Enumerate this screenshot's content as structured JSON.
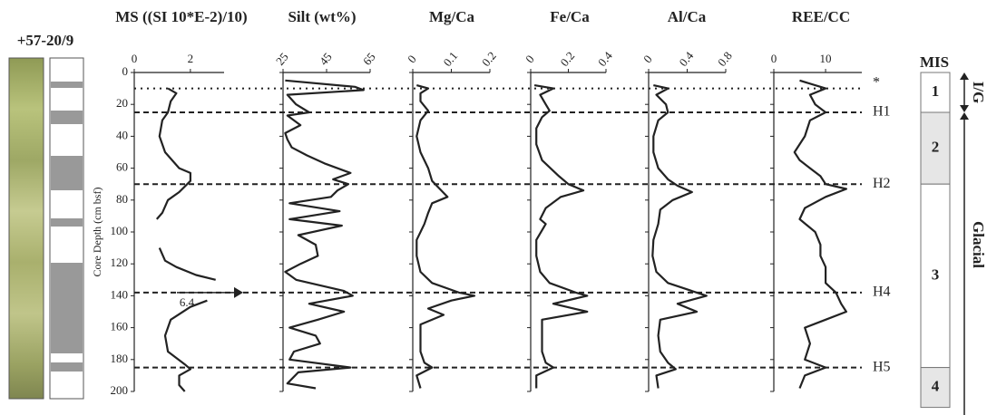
{
  "core_label": "+57-20/9",
  "chart_data": {
    "type": "depth-profile",
    "ylabel": "Core Depth (cm bsf)",
    "ylim": [
      0,
      200
    ],
    "yticks": [
      0,
      20,
      40,
      60,
      80,
      100,
      120,
      140,
      160,
      180,
      200
    ],
    "panels": [
      {
        "title": "MS ((SI 10*E-2)/10)",
        "xlim": [
          0,
          3.2
        ],
        "xticks": [
          0,
          2
        ],
        "depth": [
          10,
          13,
          18,
          25,
          30,
          40,
          50,
          60,
          63,
          68,
          75,
          80,
          88,
          92,
          100,
          110,
          118,
          122,
          127,
          130,
          135,
          143,
          147,
          155,
          165,
          175,
          183,
          186,
          190,
          196,
          200
        ],
        "values": [
          1.2,
          1.5,
          1.3,
          1.2,
          1.0,
          0.9,
          1.1,
          1.6,
          2.0,
          2.0,
          1.6,
          1.2,
          1.0,
          0.8,
          null,
          0.9,
          1.1,
          1.5,
          2.2,
          2.9,
          null,
          2.6,
          2.0,
          1.3,
          1.1,
          1.2,
          1.8,
          2.0,
          1.6,
          1.6,
          1.8
        ],
        "annotation": {
          "text": "6.4",
          "depth": 138
        }
      },
      {
        "title": "Silt (wt%)",
        "xlim": [
          25,
          65
        ],
        "xticks": [
          25,
          45,
          65
        ],
        "depth": [
          5,
          9,
          11,
          14,
          20,
          25,
          27,
          33,
          38,
          42,
          47,
          52,
          57,
          63,
          67,
          70,
          74,
          78,
          82,
          87,
          92,
          96,
          102,
          108,
          115,
          120,
          125,
          130,
          137,
          140,
          145,
          150,
          155,
          160,
          165,
          170,
          175,
          180,
          185,
          188,
          195,
          198
        ],
        "values": [
          26,
          58,
          62,
          27,
          31,
          37,
          27,
          33,
          26,
          27,
          29,
          36,
          44,
          56,
          48,
          55,
          50,
          47,
          28,
          51,
          28,
          52,
          32,
          40,
          41,
          33,
          26,
          31,
          53,
          57,
          37,
          53,
          41,
          28,
          40,
          42,
          30,
          28,
          56,
          32,
          27,
          40
        ]
      },
      {
        "title": "Mg/Ca",
        "xlim": [
          0,
          0.2
        ],
        "xticks": [
          0,
          0.1,
          0.2
        ],
        "depth": [
          8,
          10,
          13,
          18,
          24,
          30,
          40,
          50,
          60,
          68,
          73,
          78,
          82,
          88,
          95,
          105,
          115,
          125,
          132,
          138,
          140,
          143,
          148,
          152,
          158,
          165,
          175,
          182,
          185,
          190,
          198
        ],
        "values": [
          0.01,
          0.04,
          0.02,
          0.02,
          0.04,
          0.02,
          0.01,
          0.02,
          0.04,
          0.05,
          0.07,
          0.09,
          0.05,
          0.04,
          0.03,
          0.01,
          0.01,
          0.02,
          0.05,
          0.12,
          0.16,
          0.1,
          0.04,
          0.08,
          0.02,
          0.02,
          0.02,
          0.03,
          0.05,
          0.01,
          0.02
        ]
      },
      {
        "title": "Fe/Ca",
        "xlim": [
          0,
          0.4
        ],
        "xticks": [
          0,
          0.2,
          0.4
        ],
        "depth": [
          8,
          10,
          14,
          20,
          24,
          28,
          35,
          45,
          55,
          65,
          70,
          74,
          78,
          85,
          92,
          95,
          105,
          115,
          125,
          132,
          138,
          140,
          145,
          150,
          155,
          162,
          175,
          182,
          185,
          190,
          198
        ],
        "values": [
          0.02,
          0.12,
          0.05,
          0.08,
          0.1,
          0.06,
          0.03,
          0.03,
          0.06,
          0.15,
          0.2,
          0.28,
          0.16,
          0.08,
          0.05,
          0.08,
          0.03,
          0.03,
          0.05,
          0.1,
          0.24,
          0.3,
          0.12,
          0.3,
          0.06,
          0.06,
          0.06,
          0.08,
          0.12,
          0.03,
          0.03
        ]
      },
      {
        "title": "Al/Ca",
        "xlim": [
          0,
          0.8
        ],
        "xticks": [
          0,
          0.4,
          0.8
        ],
        "depth": [
          8,
          10,
          14,
          20,
          25,
          30,
          40,
          50,
          60,
          67,
          71,
          75,
          80,
          86,
          95,
          105,
          115,
          125,
          132,
          138,
          140,
          145,
          150,
          155,
          165,
          175,
          182,
          186,
          190,
          198
        ],
        "values": [
          0.05,
          0.2,
          0.08,
          0.18,
          0.2,
          0.1,
          0.05,
          0.05,
          0.1,
          0.2,
          0.3,
          0.45,
          0.25,
          0.12,
          0.1,
          0.05,
          0.04,
          0.08,
          0.2,
          0.5,
          0.6,
          0.3,
          0.5,
          0.12,
          0.1,
          0.12,
          0.2,
          0.28,
          0.08,
          0.1
        ]
      },
      {
        "title": "REE/CC",
        "xlim": [
          0,
          17
        ],
        "xticks": [
          0,
          10
        ],
        "depth": [
          5,
          10,
          14,
          20,
          25,
          30,
          40,
          50,
          55,
          60,
          65,
          70,
          73,
          78,
          85,
          92,
          100,
          108,
          115,
          122,
          132,
          138,
          145,
          150,
          155,
          160,
          170,
          180,
          185,
          190,
          198
        ],
        "values": [
          5,
          10,
          7,
          8,
          10,
          7,
          6,
          4,
          5,
          7,
          9,
          10,
          14,
          10,
          6,
          5,
          8,
          9,
          9,
          10,
          10,
          12,
          13,
          14,
          10,
          6,
          7,
          6,
          10,
          6,
          5
        ]
      }
    ],
    "horizons": [
      {
        "depth": 10,
        "label": "*",
        "style": "dotted"
      },
      {
        "depth": 25,
        "label": "H1",
        "style": "dashed"
      },
      {
        "depth": 70,
        "label": "H2",
        "style": "dashed"
      },
      {
        "depth": 138,
        "label": "H4",
        "style": "dashed"
      },
      {
        "depth": 185,
        "label": "H5",
        "style": "dashed"
      }
    ],
    "mis": {
      "title": "MIS",
      "interglacial": "I/G",
      "glacial": "Glacial",
      "stages": [
        {
          "label": "1",
          "top": 0,
          "bottom": 25,
          "color": "#ffffff"
        },
        {
          "label": "2",
          "top": 25,
          "bottom": 70,
          "color": "#e6e6e6"
        },
        {
          "label": "3",
          "top": 70,
          "bottom": 185,
          "color": "#ffffff"
        },
        {
          "label": "4",
          "top": 185,
          "bottom": 210,
          "color": "#e6e6e6"
        }
      ]
    }
  }
}
